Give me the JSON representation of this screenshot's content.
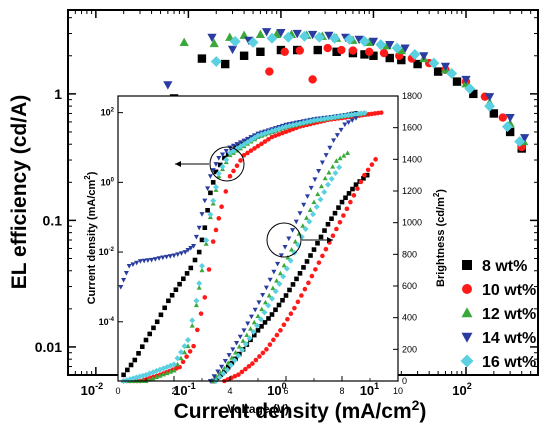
{
  "chart_data": [
    {
      "id": "main",
      "type": "scatter",
      "title": "",
      "xlabel": "Current density (mA/cm",
      "xlabel_sup": "2",
      "xlabel_close": ")",
      "ylabel": "EL efficiency (cd/A)",
      "xscale": "log",
      "yscale": "log",
      "xlim": [
        0.005,
        600
      ],
      "ylim": [
        0.006,
        4.6
      ],
      "x_ticks": [
        {
          "value": 0.01,
          "base": "10",
          "exp": "-2"
        },
        {
          "value": 0.1,
          "base": "10",
          "exp": "-1"
        },
        {
          "value": 1,
          "base": "10",
          "exp": "0"
        },
        {
          "value": 10,
          "base": "10",
          "exp": "1"
        },
        {
          "value": 100,
          "base": "10",
          "exp": "2"
        }
      ],
      "y_ticks": [
        {
          "value": 0.01,
          "label": "0.01"
        },
        {
          "value": 0.1,
          "label": "0.1"
        },
        {
          "value": 1,
          "label": "1"
        }
      ],
      "legend_position": "bottom-right",
      "series": [
        {
          "name": "8 wt%",
          "marker": "square",
          "color": "#000000",
          "x": [
            0.07,
            0.14,
            0.25,
            0.4,
            0.6,
            1.0,
            1.5,
            2.5,
            4,
            6,
            8,
            10,
            15,
            20,
            30,
            50,
            80,
            120,
            200,
            300,
            400
          ],
          "y": [
            0.92,
            1.9,
            1.72,
            2.0,
            2.15,
            2.22,
            2.22,
            2.22,
            2.15,
            2.1,
            2.05,
            2.0,
            1.92,
            1.85,
            1.72,
            1.5,
            1.25,
            1.0,
            0.7,
            0.5,
            0.37
          ]
        },
        {
          "name": "10 wt%",
          "marker": "circle",
          "color": "#ff1a1a",
          "x": [
            0.33,
            0.75,
            1.1,
            1.6,
            2.2,
            3.2,
            4.5,
            6,
            9,
            13,
            19,
            26,
            40,
            60,
            100,
            160,
            250,
            400
          ],
          "y": [
            0.9,
            1.5,
            2.15,
            2.2,
            1.3,
            2.3,
            2.22,
            2.2,
            2.15,
            2.1,
            2.0,
            1.9,
            1.75,
            1.55,
            1.25,
            0.95,
            0.65,
            0.38
          ]
        },
        {
          "name": "12 wt%",
          "marker": "triangle-up",
          "color": "#3aa83a",
          "x": [
            0.09,
            0.19,
            0.28,
            0.4,
            0.6,
            0.9,
            1.3,
            1.9,
            2.8,
            4,
            6,
            9,
            14,
            20,
            35,
            60,
            100,
            180,
            300,
            420
          ],
          "y": [
            2.55,
            2.5,
            2.8,
            2.9,
            2.95,
            2.95,
            2.95,
            2.9,
            2.85,
            2.75,
            2.65,
            2.55,
            2.4,
            2.2,
            1.9,
            1.55,
            1.2,
            0.85,
            0.58,
            0.42
          ]
        },
        {
          "name": "14 wt%",
          "marker": "triangle-down",
          "color": "#2a3ca0",
          "x": [
            0.06,
            0.18,
            0.3,
            0.45,
            0.7,
            1.0,
            1.5,
            2.2,
            3.3,
            5,
            7,
            10,
            15,
            22,
            35,
            60,
            100,
            180,
            300,
            430
          ],
          "y": [
            1.18,
            2.8,
            2.25,
            2.65,
            3.1,
            3.05,
            3.0,
            2.95,
            2.9,
            2.8,
            2.7,
            2.6,
            2.45,
            2.3,
            2.0,
            1.65,
            1.3,
            0.95,
            0.65,
            0.45
          ]
        },
        {
          "name": "16 wt%",
          "marker": "diamond",
          "color": "#5ad0e0",
          "x": [
            0.2,
            0.32,
            0.5,
            0.8,
            1.2,
            1.8,
            2.6,
            3.8,
            5.5,
            8,
            12,
            18,
            28,
            45,
            70,
            110,
            180,
            280,
            380
          ],
          "y": [
            1.8,
            2.6,
            2.55,
            2.75,
            2.8,
            2.85,
            2.8,
            2.75,
            2.7,
            2.6,
            2.45,
            2.3,
            2.05,
            1.75,
            1.45,
            1.1,
            0.8,
            0.55,
            0.42
          ]
        }
      ]
    },
    {
      "id": "inset",
      "type": "scatter",
      "title": "",
      "xlabel": "Voltage (V)",
      "ylabel": "Current density (mA/cm",
      "ylabel_sup": "2",
      "ylabel_close": ")",
      "y2label": "Brightness (cd/m",
      "y2label_sup": "2",
      "y2label_close": ")",
      "xlim": [
        0,
        10
      ],
      "x_ticks": [
        0,
        2,
        4,
        6,
        8,
        10
      ],
      "ylim": [
        2e-06,
        300
      ],
      "yscale": "log",
      "y_ticks": [
        {
          "value": 0.0001,
          "base": "10",
          "exp": "-4"
        },
        {
          "value": 0.01,
          "base": "10",
          "exp": "-2"
        },
        {
          "value": 1,
          "base": "10",
          "exp": "0"
        },
        {
          "value": 100,
          "base": "10",
          "exp": "2"
        }
      ],
      "y2lim": [
        0,
        1800
      ],
      "y2_ticks": [
        0,
        200,
        400,
        600,
        800,
        1000,
        1200,
        1400,
        1600,
        1800
      ],
      "annotations": [
        "current-density circle with left arrow",
        "brightness circle with right arrow"
      ],
      "series_current": [
        {
          "name": "8 wt%",
          "x": [
            0.2,
            0.6,
            1.0,
            1.4,
            1.8,
            2.2,
            2.6,
            2.9,
            3.1,
            3.3,
            3.5,
            3.8,
            4.2,
            5.0,
            6.0,
            7.0,
            8.0,
            8.5
          ],
          "y": [
            3e-06,
            8e-06,
            3e-05,
            0.0001,
            0.0004,
            0.0012,
            0.0035,
            0.01,
            0.05,
            0.5,
            2.0,
            5,
            10,
            22,
            40,
            60,
            80,
            95
          ]
        },
        {
          "name": "10 wt%",
          "x": [
            0.2,
            0.8,
            1.5,
            2.2,
            2.7,
            3.1,
            3.4,
            3.7,
            4.0,
            4.5,
            5.5,
            6.5,
            7.5,
            8.5,
            9.4
          ],
          "y": [
            2e-06,
            2e-06,
            3e-06,
            5e-06,
            2e-05,
            0.0005,
            0.02,
            0.2,
            1.5,
            6,
            20,
            40,
            62,
            80,
            100
          ]
        },
        {
          "name": "12 wt%",
          "x": [
            0.2,
            1.0,
            2.0,
            2.5,
            2.8,
            3.0,
            3.3,
            3.6,
            4.0,
            5.0,
            6.0,
            7.0,
            8.0,
            8.8
          ],
          "y": [
            2e-06,
            2e-06,
            4e-06,
            2e-05,
            0.0003,
            0.003,
            0.1,
            1.5,
            6,
            20,
            38,
            58,
            78,
            95
          ]
        },
        {
          "name": "14 wt%",
          "x": [
            0.1,
            0.4,
            0.8,
            1.2,
            1.6,
            2.0,
            2.4,
            2.7,
            2.9,
            3.1,
            3.3,
            3.6,
            4.0,
            5.0,
            6.0,
            7.0,
            8.0,
            8.8
          ],
          "y": [
            0.001,
            0.004,
            0.0055,
            0.006,
            0.007,
            0.008,
            0.01,
            0.015,
            0.05,
            0.3,
            1.5,
            5,
            10,
            25,
            45,
            65,
            82,
            95
          ]
        },
        {
          "name": "16 wt%",
          "x": [
            0.2,
            1.0,
            2.0,
            2.5,
            2.8,
            3.0,
            3.3,
            3.6,
            4.0,
            5.0,
            6.0,
            7.0,
            8.0,
            8.8
          ],
          "y": [
            2e-06,
            3e-06,
            6e-06,
            3e-05,
            0.0004,
            0.004,
            0.12,
            1.8,
            7,
            22,
            40,
            60,
            80,
            98
          ]
        }
      ],
      "series_brightness": [
        {
          "name": "8 wt%",
          "x": [
            3.4,
            3.8,
            4.2,
            4.6,
            5.0,
            5.5,
            6.0,
            6.5,
            7.0,
            7.5,
            8.0,
            8.5,
            8.9
          ],
          "y": [
            0,
            60,
            140,
            230,
            320,
            420,
            540,
            680,
            830,
            990,
            1130,
            1240,
            1300
          ]
        },
        {
          "name": "10 wt%",
          "x": [
            3.8,
            4.3,
            4.8,
            5.3,
            5.8,
            6.3,
            6.8,
            7.3,
            7.8,
            8.3,
            8.8,
            9.2
          ],
          "y": [
            0,
            40,
            110,
            200,
            320,
            460,
            620,
            790,
            960,
            1130,
            1300,
            1400
          ]
        },
        {
          "name": "12 wt%",
          "x": [
            3.4,
            3.8,
            4.2,
            4.6,
            5.0,
            5.4,
            5.8,
            6.2,
            6.6,
            7.0,
            7.4,
            7.8,
            8.2
          ],
          "y": [
            0,
            80,
            180,
            290,
            410,
            540,
            680,
            830,
            980,
            1130,
            1280,
            1390,
            1440
          ]
        },
        {
          "name": "14 wt%",
          "x": [
            3.3,
            3.7,
            4.1,
            4.5,
            4.9,
            5.3,
            5.7,
            6.1,
            6.5,
            6.9,
            7.3,
            7.7,
            8.1,
            8.5
          ],
          "y": [
            0,
            90,
            200,
            320,
            450,
            590,
            740,
            900,
            1060,
            1220,
            1380,
            1520,
            1620,
            1660
          ]
        },
        {
          "name": "16 wt%",
          "x": [
            3.5,
            3.9,
            4.3,
            4.7,
            5.1,
            5.5,
            5.9,
            6.3,
            6.7,
            7.1,
            7.5,
            7.9
          ],
          "y": [
            0,
            70,
            160,
            270,
            390,
            520,
            660,
            810,
            960,
            1100,
            1240,
            1350
          ]
        }
      ]
    }
  ]
}
